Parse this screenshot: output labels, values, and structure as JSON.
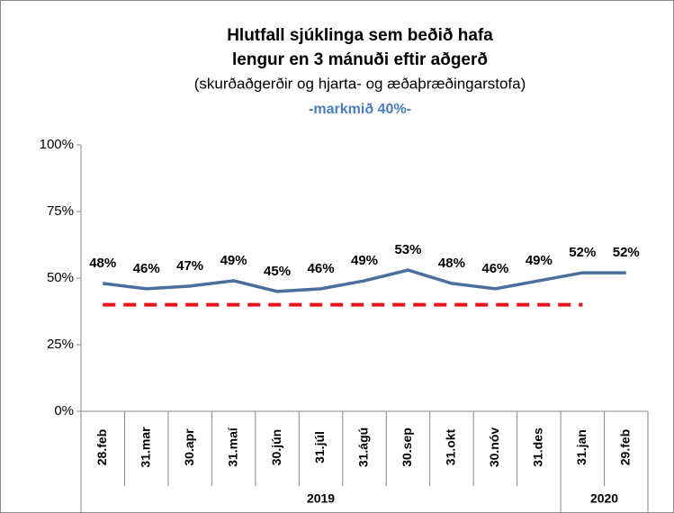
{
  "chart_data": {
    "type": "line",
    "title": [
      "Hlutfall sjúklinga sem beðið hafa",
      "lengur en 3 mánuði eftir aðgerð"
    ],
    "subtitle": "(skurðaðgerðir og hjarta- og æðaþræðingarstofa)",
    "annotation": "-markmið 40%-",
    "categories": [
      "28.feb",
      "31.mar",
      "30.apr",
      "31.maí",
      "30.jún",
      "31.júl",
      "31.ágú",
      "30.sep",
      "31.okt",
      "30.nóv",
      "31.des",
      "31.jan",
      "29.feb"
    ],
    "groups": [
      {
        "label": "2019",
        "count": 11
      },
      {
        "label": "2020",
        "count": 2
      }
    ],
    "series": [
      {
        "color": "#4a6f9c",
        "style": "solid",
        "values": [
          48,
          46,
          47,
          49,
          45,
          46,
          49,
          53,
          48,
          46,
          49,
          52,
          52
        ],
        "value_labels": [
          "48%",
          "46%",
          "47%",
          "49%",
          "45%",
          "46%",
          "49%",
          "53%",
          "48%",
          "46%",
          "49%",
          "52%",
          "52%"
        ]
      },
      {
        "color": "#e8141c",
        "style": "dashed",
        "values": [
          40,
          40,
          40,
          40,
          40,
          40,
          40,
          40,
          40,
          40,
          40,
          40,
          null
        ]
      }
    ],
    "ylim": [
      0,
      100
    ],
    "yticks": [
      {
        "value": 0,
        "label": "0%"
      },
      {
        "value": 25,
        "label": "25%"
      },
      {
        "value": 50,
        "label": "50%"
      },
      {
        "value": 75,
        "label": "75%"
      },
      {
        "value": 100,
        "label": "100%"
      }
    ],
    "grid": false
  }
}
